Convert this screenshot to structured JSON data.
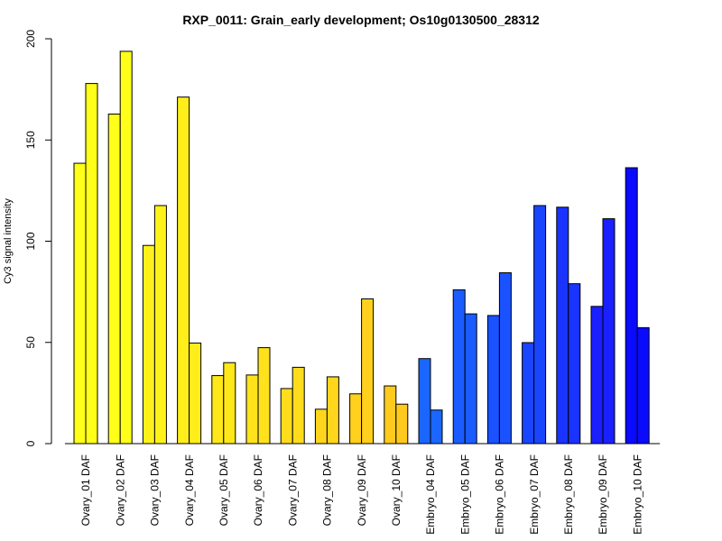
{
  "chart_data": {
    "type": "bar",
    "title": "RXP_0011: Grain_early development; Os10g0130500_28312",
    "xlabel": "",
    "ylabel": "Cy3 signal intensity",
    "ylim": [
      0,
      200
    ],
    "yticks": [
      0,
      50,
      100,
      150,
      200
    ],
    "grid": false,
    "categories": [
      "Ovary_01 DAF",
      "Ovary_02 DAF",
      "Ovary_03 DAF",
      "Ovary_04 DAF",
      "Ovary_05 DAF",
      "Ovary_06 DAF",
      "Ovary_07 DAF",
      "Ovary_08 DAF",
      "Ovary_09 DAF",
      "Ovary_10 DAF",
      "Embryo_04 DAF",
      "Embryo_05 DAF",
      "Embryo_06 DAF",
      "Embryo_07 DAF",
      "Embryo_08 DAF",
      "Embryo_09 DAF",
      "Embryo_10 DAF"
    ],
    "category_colors": [
      "#ffff19",
      "#ffff19",
      "#fff21a",
      "#ffee1a",
      "#ffe81a",
      "#ffe21b",
      "#ffdc1c",
      "#ffd61c",
      "#ffd01d",
      "#ffca1d",
      "#1a66ff",
      "#1a5cff",
      "#1a52ff",
      "#1a45ff",
      "#1a33ff",
      "#1a20ff",
      "#0a0aff"
    ],
    "series": [
      {
        "values": [
          138.5,
          162.8,
          97.9,
          171.2,
          33.6,
          33.9,
          27.2,
          17.0,
          24.6,
          28.5,
          42.0,
          76.0,
          63.3,
          49.9,
          116.8,
          67.8,
          136.3
        ]
      },
      {
        "values": [
          177.9,
          193.8,
          117.6,
          49.7,
          40.0,
          47.4,
          37.7,
          33.0,
          71.5,
          19.5,
          16.6,
          64.1,
          84.4,
          117.6,
          79.0,
          111.1,
          57.3
        ]
      }
    ]
  }
}
